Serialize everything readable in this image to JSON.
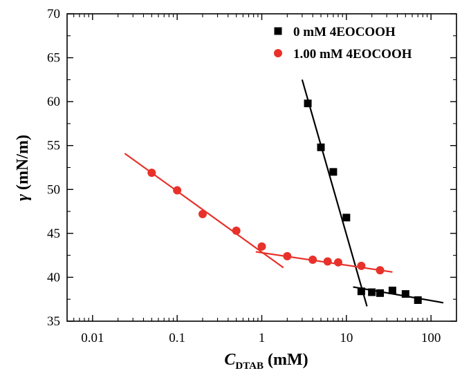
{
  "chart_data": {
    "type": "scatter",
    "xscale": "log",
    "xlim": [
      0.005,
      200
    ],
    "ylim": [
      35,
      70
    ],
    "xticks": [
      {
        "value": 0.01,
        "label": "0.01"
      },
      {
        "value": 0.1,
        "label": "0.1"
      },
      {
        "value": 1,
        "label": "1"
      },
      {
        "value": 10,
        "label": "10"
      },
      {
        "value": 100,
        "label": "100"
      }
    ],
    "yticks": [
      35,
      40,
      45,
      50,
      55,
      60,
      65,
      70
    ],
    "xlabel": {
      "main": "C",
      "sub": "DTAB",
      "unit": " (mM)"
    },
    "ylabel": {
      "symbol": "γ",
      "unit": " (mN/m)"
    },
    "grid": false,
    "legend_position": "top-right",
    "series": [
      {
        "name": "0 mM 4EOCOOH",
        "marker": "square",
        "color": "#000000",
        "points": [
          {
            "x": 3.5,
            "y": 59.8
          },
          {
            "x": 5,
            "y": 54.8
          },
          {
            "x": 7,
            "y": 52.0
          },
          {
            "x": 10,
            "y": 46.8
          },
          {
            "x": 15,
            "y": 38.4
          },
          {
            "x": 20,
            "y": 38.3
          },
          {
            "x": 25,
            "y": 38.2
          },
          {
            "x": 35,
            "y": 38.5
          },
          {
            "x": 50,
            "y": 38.1
          },
          {
            "x": 70,
            "y": 37.4
          }
        ],
        "fit_lines": [
          {
            "x1": 3.0,
            "y1": 62.5,
            "x2": 17.5,
            "y2": 36.7
          },
          {
            "x1": 12,
            "y1": 38.9,
            "x2": 140,
            "y2": 37.1
          }
        ]
      },
      {
        "name": "1.00 mM 4EOCOOH",
        "marker": "circle",
        "color": "#e8312a",
        "points": [
          {
            "x": 0.05,
            "y": 51.9
          },
          {
            "x": 0.1,
            "y": 49.9
          },
          {
            "x": 0.2,
            "y": 47.2
          },
          {
            "x": 0.5,
            "y": 45.3
          },
          {
            "x": 1,
            "y": 43.5
          },
          {
            "x": 2,
            "y": 42.4
          },
          {
            "x": 4,
            "y": 42.0
          },
          {
            "x": 6,
            "y": 41.8
          },
          {
            "x": 8,
            "y": 41.7
          },
          {
            "x": 15,
            "y": 41.3
          },
          {
            "x": 25,
            "y": 40.8
          }
        ],
        "fit_lines": [
          {
            "x1": 0.024,
            "y1": 54.1,
            "x2": 1.8,
            "y2": 41.1
          },
          {
            "x1": 0.85,
            "y1": 42.9,
            "x2": 35,
            "y2": 40.6
          }
        ]
      }
    ]
  }
}
